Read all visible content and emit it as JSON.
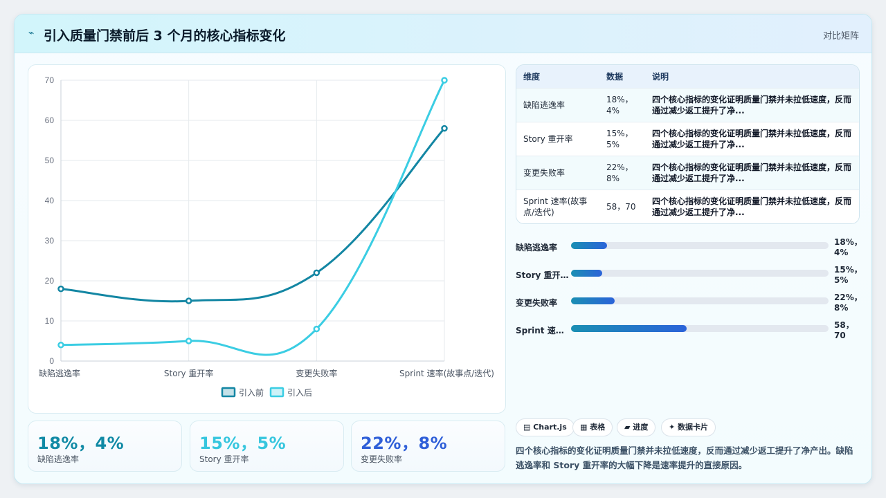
{
  "header": {
    "icon": "chart-line-icon",
    "title": "引入质量门禁前后 3 个月的核心指标变化",
    "tag": "对比矩阵"
  },
  "chart_data": {
    "type": "line",
    "categories": [
      "缺陷逃逸率",
      "Story 重开率",
      "变更失败率",
      "Sprint 速率(故事点/迭代)"
    ],
    "series": [
      {
        "name": "引入前",
        "values": [
          18,
          15,
          22,
          58
        ],
        "color": "#1386a3"
      },
      {
        "name": "引入后",
        "values": [
          4,
          5,
          8,
          70
        ],
        "color": "#3bcde3"
      }
    ],
    "ylim": [
      0,
      70
    ],
    "yticks": [
      "0",
      "10",
      "20",
      "30",
      "40",
      "50",
      "60",
      "70"
    ],
    "grid": true,
    "legend": "bottom"
  },
  "kpis": [
    {
      "value": "18%，4%",
      "label": "缺陷逃逸率",
      "color": "#118aa5"
    },
    {
      "value": "15%，5%",
      "label": "Story 重开率",
      "color": "#36c6de"
    },
    {
      "value": "22%，8%",
      "label": "变更失败率",
      "color": "#2f5fd8"
    }
  ],
  "table": {
    "headers": [
      "维度",
      "数据",
      "说明"
    ],
    "rows": [
      {
        "dim": "缺陷逃逸率",
        "data": "18%，4%",
        "desc": "四个核心指标的变化证明质量门禁并未拉低速度，反而通过减少返工提升了净..."
      },
      {
        "dim": "Story 重开率",
        "data": "15%，5%",
        "desc": "四个核心指标的变化证明质量门禁并未拉低速度，反而通过减少返工提升了净..."
      },
      {
        "dim": "变更失败率",
        "data": "22%，8%",
        "desc": "四个核心指标的变化证明质量门禁并未拉低速度，反而通过减少返工提升了净..."
      },
      {
        "dim": "Sprint 速率(故事点/迭代)",
        "data": "58，70",
        "desc": "四个核心指标的变化证明质量门禁并未拉低速度，反而通过减少返工提升了净..."
      }
    ]
  },
  "bars": [
    {
      "label": "缺陷逃逸率",
      "value": "18%，4%",
      "fraction": 0.14
    },
    {
      "label": "Story 重开…",
      "value": "15%，5%",
      "fraction": 0.12
    },
    {
      "label": "变更失败率",
      "value": "22%，8%",
      "fraction": 0.17
    },
    {
      "label": "Sprint 速…",
      "value": "58，70",
      "fraction": 0.45
    }
  ],
  "chips": [
    {
      "icon": "chart-icon",
      "label": "Chart.js"
    },
    {
      "icon": "table-icon",
      "label": "表格"
    },
    {
      "icon": "progress-icon",
      "label": "进度"
    },
    {
      "icon": "spark-icon",
      "label": "数据卡片"
    }
  ],
  "footnote": "四个核心指标的变化证明质量门禁并未拉低速度，反而通过减少返工提升了净产出。缺陷逃逸率和 Story 重开率的大幅下降是速率提升的直接原因。"
}
